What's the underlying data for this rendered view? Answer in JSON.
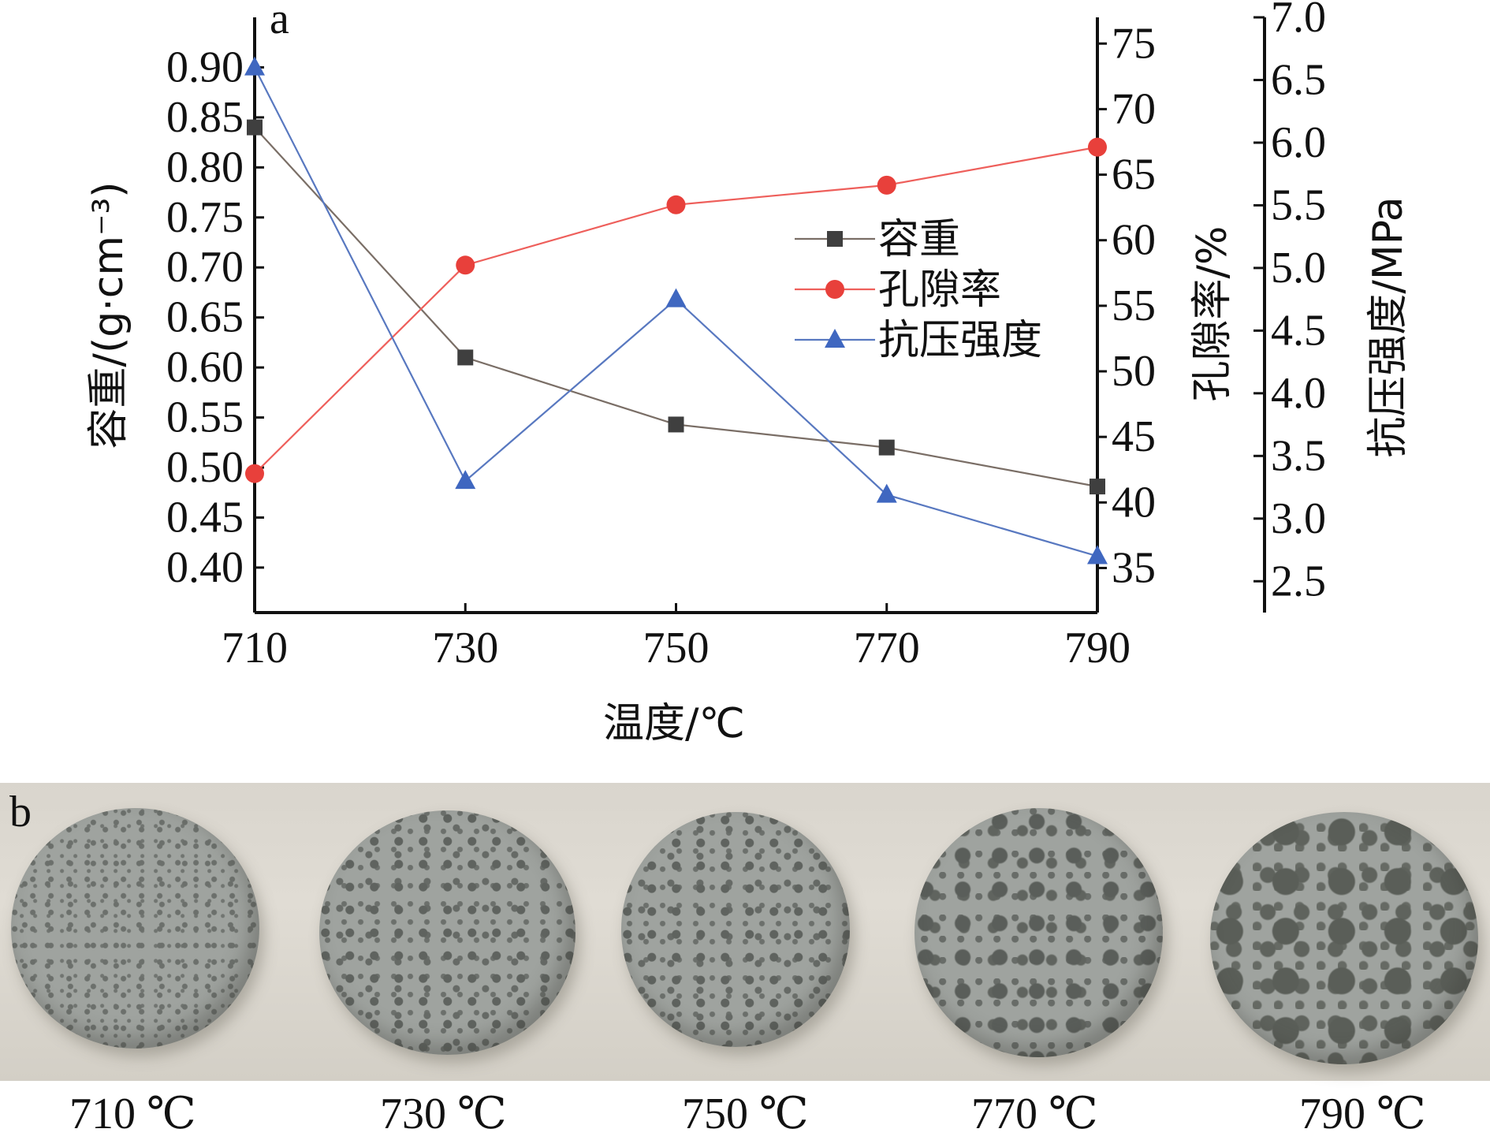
{
  "chart_data": {
    "type": "line",
    "panel_label": "a",
    "xlabel": "温度/℃",
    "x": [
      710,
      730,
      750,
      770,
      790
    ],
    "x_ticks": [
      "710",
      "730",
      "750",
      "770",
      "790"
    ],
    "xlim": [
      710,
      790
    ],
    "axes": {
      "left": {
        "label": "容重/(g·cm⁻³)",
        "lim": [
          0.355,
          0.95
        ],
        "ticks": [
          "0.40",
          "0.45",
          "0.50",
          "0.55",
          "0.60",
          "0.65",
          "0.70",
          "0.75",
          "0.80",
          "0.85",
          "0.90"
        ]
      },
      "right1": {
        "label": "孔隙率/%",
        "lim": [
          31.6,
          77.0
        ],
        "ticks": [
          "35",
          "40",
          "45",
          "50",
          "55",
          "60",
          "65",
          "70",
          "75"
        ]
      },
      "right2": {
        "label": "抗压强度/MPa",
        "lim": [
          2.25,
          7.0
        ],
        "ticks": [
          "2.5",
          "3.0",
          "3.5",
          "4.0",
          "4.5",
          "5.0",
          "5.5",
          "6.0",
          "6.5",
          "7.0"
        ]
      }
    },
    "series": [
      {
        "name": "容重",
        "axis": "left",
        "marker": "square",
        "color": "#7a6e66",
        "marker_color": "#3f3f3f",
        "values": [
          0.84,
          0.61,
          0.543,
          0.52,
          0.481
        ]
      },
      {
        "name": "孔隙率",
        "axis": "right1",
        "marker": "circle",
        "color": "#ee5f5b",
        "marker_color": "#e8403b",
        "values": [
          42.2,
          58.1,
          62.7,
          64.2,
          67.1
        ]
      },
      {
        "name": "抗压强度",
        "axis": "right2",
        "marker": "triangle",
        "color": "#5878c0",
        "marker_color": "#3f67c0",
        "values": [
          6.6,
          3.3,
          4.75,
          3.19,
          2.7
        ]
      }
    ],
    "legend": "center-right"
  },
  "photo": {
    "panel_label": "b",
    "samples": [
      {
        "caption": "710 ℃",
        "pore_style": "fine"
      },
      {
        "caption": "730 ℃",
        "pore_style": "mid"
      },
      {
        "caption": "750 ℃",
        "pore_style": "mid"
      },
      {
        "caption": "770 ℃",
        "pore_style": "large"
      },
      {
        "caption": "790 ℃",
        "pore_style": "xl"
      }
    ]
  }
}
